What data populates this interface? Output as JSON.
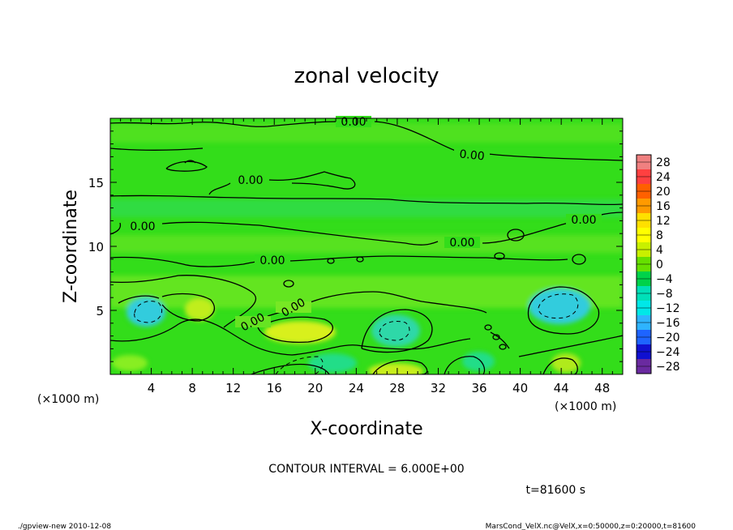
{
  "chart_data": {
    "type": "heatmap",
    "title": "zonal velocity",
    "xlabel": "X-coordinate",
    "ylabel": "Z-coordinate",
    "x_unit_label": "(×1000 m)",
    "z_unit_label": "(×1000 m)",
    "xlim": [
      0,
      50
    ],
    "ylim": [
      0,
      20
    ],
    "x_ticks": [
      4,
      8,
      12,
      16,
      20,
      24,
      28,
      32,
      36,
      40,
      44,
      48
    ],
    "y_ticks": [
      5,
      10,
      15
    ],
    "contour_labels": [
      "0.00",
      "0.00",
      "0.00",
      "0.00",
      "0.00",
      "0.00",
      "0.00",
      "0.00",
      "0.00"
    ],
    "contour_interval_text": "CONTOUR INTERVAL = 6.000E+00",
    "time_text": "t=81600 s",
    "colorbar": {
      "levels": [
        -28,
        -24,
        -20,
        -16,
        -12,
        -8,
        -4,
        0,
        4,
        8,
        12,
        16,
        20,
        24,
        28
      ],
      "labels": [
        "28",
        "24",
        "20",
        "16",
        "12",
        "8",
        "4",
        "0",
        "−4",
        "−8",
        "−12",
        "−16",
        "−20",
        "−24",
        "−28"
      ],
      "colors": [
        "#f08080",
        "#ff4040",
        "#ff6000",
        "#ff9a00",
        "#ffe000",
        "#ffff00",
        "#c8f000",
        "#66e000",
        "#00d24a",
        "#00e0b8",
        "#00e8e8",
        "#2eb4ff",
        "#1e64ff",
        "#1010d0",
        "#6a2aa0"
      ]
    },
    "field_colors": {
      "background": "#33dd1a",
      "positive_light": "#88ee22",
      "positive_strong": "#d8f01a",
      "negative_light": "#22dd88",
      "negative_strong": "#33ccdd"
    }
  },
  "footer": {
    "program": "./gpview-new  2010-12-08",
    "source": "MarsCond_VelX.nc@VelX,x=0:50000,z=0:20000,t=81600"
  }
}
